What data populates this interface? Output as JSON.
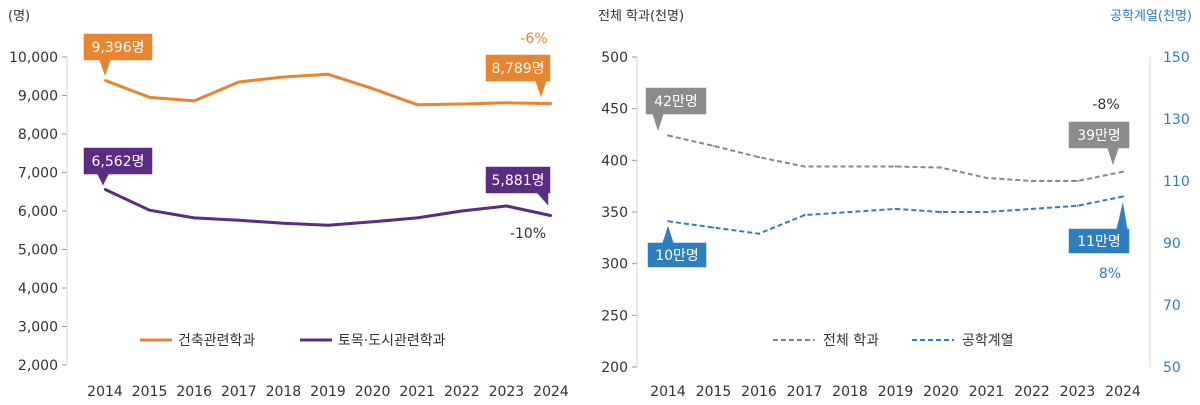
{
  "chart_data": [
    {
      "type": "line",
      "unit_label": "(명)",
      "x": [
        "2014",
        "2015",
        "2016",
        "2017",
        "2018",
        "2019",
        "2020",
        "2021",
        "2022",
        "2023",
        "2024"
      ],
      "ylim": [
        2000,
        10000
      ],
      "yticks": [
        "2,000",
        "3,000",
        "4,000",
        "5,000",
        "6,000",
        "7,000",
        "8,000",
        "9,000",
        "10,000"
      ],
      "series": [
        {
          "name": "건축관련학과",
          "color": "#e8852f",
          "values": [
            9396,
            8950,
            8860,
            9350,
            9480,
            9550,
            9180,
            8760,
            8780,
            8810,
            8789
          ],
          "start_label": "9,396명",
          "end_label": "8,789명",
          "change": "-6%"
        },
        {
          "name": "토목·도시관련학과",
          "color": "#5b2c83",
          "values": [
            6562,
            6020,
            5820,
            5760,
            5680,
            5630,
            5720,
            5820,
            6000,
            6130,
            5881
          ],
          "start_label": "6,562명",
          "end_label": "5,881명",
          "change": "-10%"
        }
      ],
      "grid": false,
      "legend": "bottom"
    },
    {
      "type": "line",
      "left_axis_label": "전체 학과(천명)",
      "right_axis_label": "공학계열(천명)",
      "x": [
        "2014",
        "2015",
        "2016",
        "2017",
        "2018",
        "2019",
        "2020",
        "2021",
        "2022",
        "2023",
        "2024"
      ],
      "ylim_left": [
        200,
        500
      ],
      "ylim_right": [
        50,
        150
      ],
      "yticks_left": [
        "200",
        "250",
        "300",
        "350",
        "400",
        "450",
        "500"
      ],
      "yticks_right": [
        "50",
        "70",
        "90",
        "110",
        "130",
        "150"
      ],
      "series": [
        {
          "name": "전체 학과",
          "axis": "left",
          "color": "#888888",
          "dash": true,
          "values": [
            424,
            414,
            403,
            394,
            394,
            394,
            393,
            383,
            380,
            380,
            389
          ],
          "start_label": "42만명",
          "end_label": "39만명",
          "change": "-8%"
        },
        {
          "name": "공학계열",
          "axis": "right",
          "color": "#2d7fc1",
          "dash": true,
          "values": [
            97,
            95,
            93,
            99,
            100,
            101,
            100,
            100,
            101,
            102,
            105
          ],
          "start_label": "10만명",
          "end_label": "11만명",
          "change": "8%"
        }
      ],
      "grid": false,
      "legend": "bottom"
    }
  ]
}
